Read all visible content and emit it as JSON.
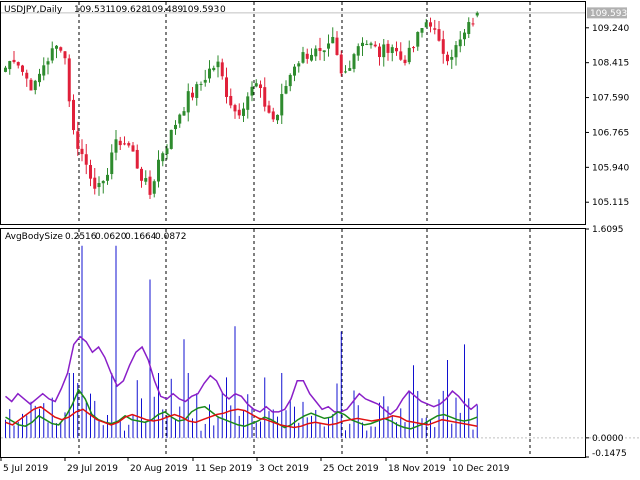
{
  "header": {
    "symbol": "USDJPY,Daily",
    "ohlc": [
      "109.531",
      "109.628",
      "109.489",
      "109.593"
    ],
    "extra": "0"
  },
  "price_panel": {
    "current_price": "109.593",
    "tick_labels": [
      "109.240",
      "108.415",
      "107.590",
      "106.765",
      "105.940",
      "105.115"
    ]
  },
  "indicator_panel": {
    "title": "AvgBodySize",
    "values": [
      "0.2516",
      "0.0620",
      "0.1664",
      "0.0872"
    ],
    "tick_labels": [
      "1.6095",
      "0.0000",
      "-0.1475"
    ]
  },
  "time_axis": {
    "labels": [
      "5 Jul 2019",
      "29 Jul 2019",
      "20 Aug 2019",
      "11 Sep 2019",
      "3 Oct 2019",
      "25 Oct 2019",
      "18 Nov 2019",
      "10 Dec 2019"
    ]
  },
  "colors": {
    "bull": "#2e8b2e",
    "bear": "#e0203a",
    "hist": "#1010d0",
    "purple": "#8a1fc8",
    "green_line": "#1a8a1a",
    "red_line": "#e01010",
    "price_label_bg": "#b0b0b0"
  },
  "chart_data": [
    {
      "type": "candlestick",
      "title": "USDJPY,Daily",
      "x_range": [
        "5 Jul 2019",
        "10 Dec 2019"
      ],
      "ylim": [
        104.6,
        109.85
      ],
      "y_ticks": [
        109.24,
        108.415,
        107.59,
        106.765,
        105.94,
        105.115
      ],
      "current_price": 109.593,
      "last_bar": {
        "open": 109.531,
        "high": 109.628,
        "low": 109.489,
        "close": 109.593
      },
      "close_path": [
        108.3,
        108.6,
        108.1,
        107.8,
        108.4,
        108.7,
        108.9,
        106.8,
        106.2,
        105.7,
        105.3,
        106.3,
        106.6,
        106.4,
        105.8,
        105.3,
        106.2,
        106.6,
        107.2,
        107.6,
        107.8,
        108.2,
        108.4,
        107.7,
        107.2,
        107.6,
        107.9,
        107.4,
        107.0,
        107.8,
        108.4,
        108.6,
        108.7,
        108.5,
        108.9,
        108.0,
        108.6,
        109.0,
        108.8,
        108.6,
        108.9,
        108.5,
        108.6,
        109.1,
        109.5,
        108.8,
        108.6,
        108.8,
        109.2,
        109.6
      ]
    },
    {
      "type": "line",
      "title": "AvgBodySize",
      "ylim": [
        -0.1475,
        1.6095
      ],
      "y_ticks": [
        1.6095,
        0.0,
        -0.1475
      ],
      "series": [
        {
          "name": "",
          "color": "#1010d0",
          "style": "histogram",
          "last": 0.2516
        },
        {
          "name": "",
          "color": "#8a1fc8",
          "style": "line",
          "last": 0.2516,
          "values": [
            0.32,
            0.28,
            0.34,
            0.3,
            0.26,
            0.3,
            0.34,
            0.3,
            0.28,
            0.38,
            0.5,
            0.72,
            0.78,
            0.74,
            0.66,
            0.7,
            0.62,
            0.5,
            0.4,
            0.44,
            0.56,
            0.66,
            0.7,
            0.6,
            0.44,
            0.32,
            0.3,
            0.34,
            0.3,
            0.28,
            0.32,
            0.34,
            0.42,
            0.48,
            0.44,
            0.34,
            0.3,
            0.34,
            0.32,
            0.26,
            0.22,
            0.2,
            0.24,
            0.2,
            0.2,
            0.22,
            0.3,
            0.44,
            0.44,
            0.34,
            0.28,
            0.22,
            0.24,
            0.2,
            0.2,
            0.22,
            0.28,
            0.34,
            0.3,
            0.28,
            0.26,
            0.22,
            0.18,
            0.22,
            0.3,
            0.36,
            0.32,
            0.28,
            0.26,
            0.24,
            0.26,
            0.3,
            0.36,
            0.32,
            0.26,
            0.22,
            0.26
          ]
        },
        {
          "name": "",
          "color": "#1a8a1a",
          "style": "line",
          "last": 0.1664,
          "values": [
            0.16,
            0.13,
            0.1,
            0.09,
            0.12,
            0.17,
            0.14,
            0.11,
            0.1,
            0.16,
            0.25,
            0.37,
            0.3,
            0.18,
            0.14,
            0.12,
            0.11,
            0.13,
            0.17,
            0.14,
            0.13,
            0.12,
            0.14,
            0.18,
            0.2,
            0.16,
            0.13,
            0.14,
            0.2,
            0.23,
            0.24,
            0.2,
            0.16,
            0.14,
            0.12,
            0.1,
            0.09,
            0.11,
            0.13,
            0.16,
            0.14,
            0.11,
            0.08,
            0.1,
            0.14,
            0.17,
            0.19,
            0.17,
            0.15,
            0.16,
            0.2,
            0.18,
            0.14,
            0.12,
            0.1,
            0.11,
            0.13,
            0.15,
            0.13,
            0.1,
            0.08,
            0.07,
            0.09,
            0.11,
            0.14,
            0.17,
            0.18,
            0.16,
            0.14,
            0.13,
            0.14,
            0.16
          ]
        },
        {
          "name": "",
          "color": "#e01010",
          "style": "line",
          "last": 0.0872,
          "values": [
            0.12,
            0.1,
            0.14,
            0.18,
            0.22,
            0.24,
            0.2,
            0.16,
            0.14,
            0.16,
            0.2,
            0.22,
            0.18,
            0.14,
            0.12,
            0.1,
            0.12,
            0.16,
            0.18,
            0.16,
            0.14,
            0.13,
            0.14,
            0.16,
            0.18,
            0.16,
            0.13,
            0.12,
            0.14,
            0.16,
            0.18,
            0.19,
            0.21,
            0.22,
            0.21,
            0.18,
            0.15,
            0.14,
            0.12,
            0.1,
            0.09,
            0.08,
            0.09,
            0.11,
            0.12,
            0.11,
            0.1,
            0.11,
            0.13,
            0.14,
            0.15,
            0.14,
            0.13,
            0.14,
            0.15,
            0.17,
            0.16,
            0.13,
            0.12,
            0.11,
            0.1,
            0.12,
            0.14,
            0.13,
            0.12,
            0.11,
            0.1,
            0.09
          ]
        }
      ]
    }
  ]
}
